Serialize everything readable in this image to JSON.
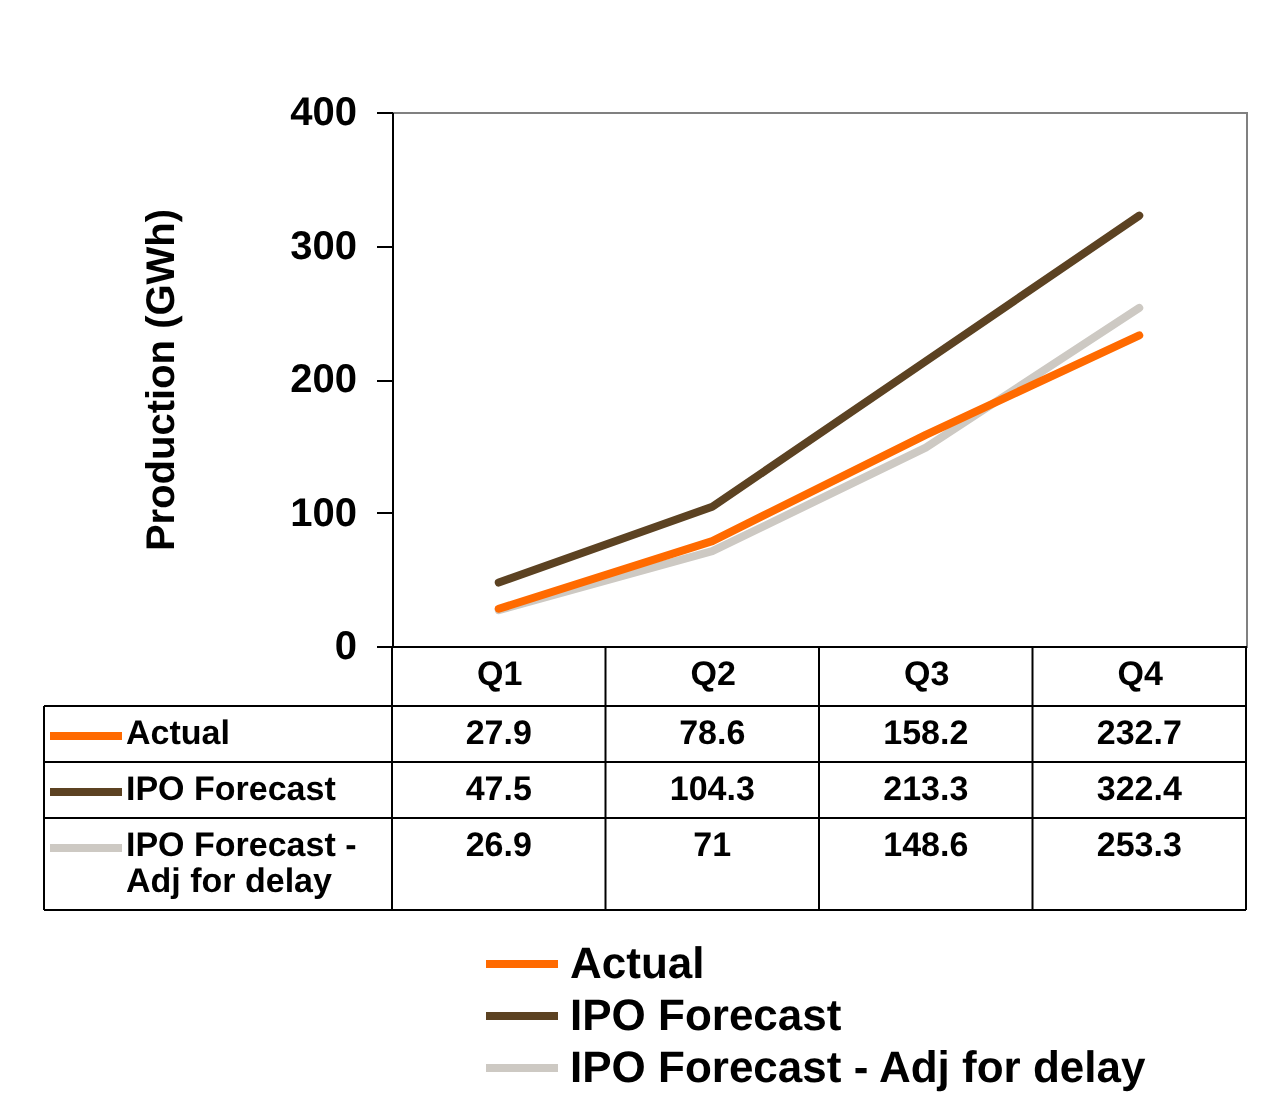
{
  "chart_data": {
    "type": "line",
    "categories": [
      "Q1",
      "Q2",
      "Q3",
      "Q4"
    ],
    "ylabel": "Production (GWh)",
    "ylim": [
      0,
      400
    ],
    "yticks": [
      0,
      100,
      200,
      300,
      400
    ],
    "grid": false,
    "legend": "bottom",
    "data_labels": true,
    "series": [
      {
        "name": "Actual",
        "color": "#ff6a00",
        "values": [
          27.9,
          78.6,
          158.2,
          232.7
        ]
      },
      {
        "name": "IPO Forecast",
        "color": "#5c4222",
        "values": [
          47.5,
          104.3,
          213.3,
          322.4
        ]
      },
      {
        "name": "IPO Forecast - Adj for delay",
        "color": "#cdc9c3",
        "values": [
          26.9,
          71,
          148.6,
          253.3
        ]
      }
    ]
  }
}
